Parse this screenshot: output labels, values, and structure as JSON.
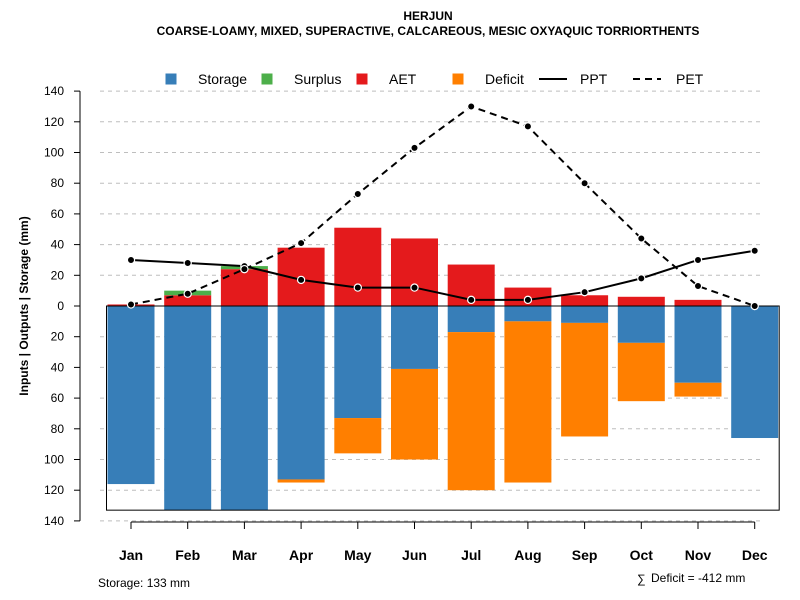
{
  "chart_data": {
    "type": "bar",
    "title": "HERJUN",
    "subtitle": "COARSE-LOAMY, MIXED, SUPERACTIVE, CALCAREOUS, MESIC OXYAQUIC TORRIORTHENTS",
    "ylabel": "Inputs | Outputs | Storage    (mm)",
    "ylim": [
      -140,
      140
    ],
    "yticks": [
      140,
      120,
      100,
      80,
      60,
      40,
      20,
      0,
      20,
      40,
      60,
      80,
      100,
      120,
      140
    ],
    "grid": true,
    "categories": [
      "Jan",
      "Feb",
      "Mar",
      "Apr",
      "May",
      "Jun",
      "Jul",
      "Aug",
      "Sep",
      "Oct",
      "Nov",
      "Dec"
    ],
    "legend": {
      "position": "top",
      "entries": [
        {
          "name": "Storage",
          "kind": "box",
          "color": "#377eb8"
        },
        {
          "name": "Surplus",
          "kind": "box",
          "color": "#4daf4a"
        },
        {
          "name": "AET",
          "kind": "box",
          "color": "#e41a1c"
        },
        {
          "name": "Deficit",
          "kind": "box",
          "color": "#ff7f00"
        },
        {
          "name": "PPT",
          "kind": "solid-line",
          "color": "#000000"
        },
        {
          "name": "PET",
          "kind": "dashed-line",
          "color": "#000000"
        }
      ]
    },
    "series": [
      {
        "name": "AET",
        "color": "#e41a1c",
        "values": [
          1,
          7,
          24,
          38,
          51,
          44,
          27,
          12,
          7,
          6,
          4,
          0
        ]
      },
      {
        "name": "Surplus",
        "color": "#4daf4a",
        "values": [
          0,
          3,
          2,
          0,
          0,
          0,
          0,
          0,
          0,
          0,
          0,
          0
        ]
      },
      {
        "name": "Storage",
        "color": "#377eb8",
        "values": [
          116,
          133,
          133,
          113,
          73,
          41,
          17,
          10,
          11,
          24,
          50,
          86
        ]
      },
      {
        "name": "Deficit",
        "color": "#ff7f00",
        "values": [
          0,
          0,
          0,
          2,
          23,
          59,
          103,
          105,
          74,
          38,
          9,
          0
        ]
      },
      {
        "name": "PPT",
        "color": "#000000",
        "style": "solid",
        "values": [
          30,
          28,
          26,
          17,
          12,
          12,
          4,
          4,
          9,
          18,
          30,
          36
        ]
      },
      {
        "name": "PET",
        "color": "#000000",
        "style": "dashed",
        "values": [
          1,
          8,
          24,
          41,
          73,
          103,
          130,
          117,
          80,
          44,
          13,
          0
        ]
      }
    ],
    "storage_capacity": 133,
    "footnotes": {
      "storage": "Storage: 133 mm",
      "deficit_symbol": "∑",
      "deficit": "Deficit = -412 mm"
    }
  }
}
